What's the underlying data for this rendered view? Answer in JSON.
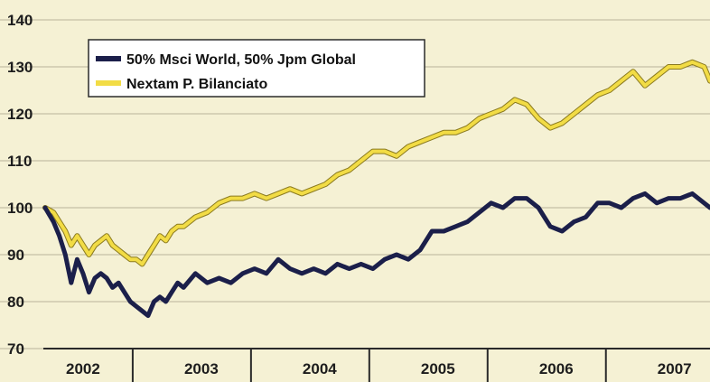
{
  "chart_data": {
    "type": "line",
    "title": "",
    "xlabel": "",
    "ylabel": "",
    "ylim": [
      70,
      140
    ],
    "xlim": [
      2001.93,
      2007.55
    ],
    "y_ticks": [
      70,
      80,
      90,
      100,
      110,
      120,
      130,
      140
    ],
    "x_tick_labels": [
      {
        "label": "2002",
        "x": 2002.25
      },
      {
        "label": "2003",
        "x": 2003.25
      },
      {
        "label": "2004",
        "x": 2004.25
      },
      {
        "label": "2005",
        "x": 2005.25
      },
      {
        "label": "2006",
        "x": 2006.25
      },
      {
        "label": "2007",
        "x": 2007.25
      }
    ],
    "x_separators": [
      2002.67,
      2003.67,
      2004.67,
      2005.67,
      2006.67
    ],
    "grid": true,
    "legend_position": "top-left",
    "series": [
      {
        "name": "50% Msci World, 50% Jpm Global",
        "color": "#1b1f4a",
        "x": [
          2001.93,
          2002.0,
          2002.05,
          2002.1,
          2002.15,
          2002.2,
          2002.25,
          2002.3,
          2002.35,
          2002.4,
          2002.45,
          2002.5,
          2002.55,
          2002.6,
          2002.65,
          2002.7,
          2002.75,
          2002.8,
          2002.85,
          2002.9,
          2002.95,
          2003.0,
          2003.05,
          2003.1,
          2003.2,
          2003.3,
          2003.4,
          2003.5,
          2003.6,
          2003.7,
          2003.8,
          2003.9,
          2004.0,
          2004.1,
          2004.2,
          2004.3,
          2004.4,
          2004.5,
          2004.6,
          2004.7,
          2004.8,
          2004.9,
          2005.0,
          2005.1,
          2005.2,
          2005.3,
          2005.4,
          2005.5,
          2005.6,
          2005.7,
          2005.8,
          2005.9,
          2006.0,
          2006.1,
          2006.2,
          2006.3,
          2006.4,
          2006.5,
          2006.6,
          2006.7,
          2006.8,
          2006.9,
          2007.0,
          2007.1,
          2007.2,
          2007.3,
          2007.4,
          2007.5,
          2007.55
        ],
        "values": [
          100,
          97,
          94,
          90,
          84,
          89,
          86,
          82,
          85,
          86,
          85,
          83,
          84,
          82,
          80,
          79,
          78,
          77,
          80,
          81,
          80,
          82,
          84,
          83,
          86,
          84,
          85,
          84,
          86,
          87,
          86,
          89,
          87,
          86,
          87,
          86,
          88,
          87,
          88,
          87,
          89,
          90,
          89,
          91,
          95,
          95,
          96,
          97,
          99,
          101,
          100,
          102,
          102,
          100,
          96,
          95,
          97,
          98,
          101,
          101,
          100,
          102,
          103,
          101,
          102,
          102,
          103,
          101,
          100
        ]
      },
      {
        "name": "Nextam P. Bilanciato",
        "color": "#f2dc45",
        "x": [
          2001.93,
          2002.0,
          2002.05,
          2002.1,
          2002.15,
          2002.2,
          2002.25,
          2002.3,
          2002.35,
          2002.4,
          2002.45,
          2002.5,
          2002.55,
          2002.6,
          2002.65,
          2002.7,
          2002.75,
          2002.8,
          2002.85,
          2002.9,
          2002.95,
          2003.0,
          2003.05,
          2003.1,
          2003.2,
          2003.3,
          2003.4,
          2003.5,
          2003.6,
          2003.7,
          2003.8,
          2003.9,
          2004.0,
          2004.1,
          2004.2,
          2004.3,
          2004.4,
          2004.5,
          2004.6,
          2004.7,
          2004.8,
          2004.9,
          2005.0,
          2005.1,
          2005.2,
          2005.3,
          2005.4,
          2005.5,
          2005.6,
          2005.7,
          2005.8,
          2005.9,
          2006.0,
          2006.1,
          2006.2,
          2006.3,
          2006.4,
          2006.5,
          2006.6,
          2006.7,
          2006.8,
          2006.9,
          2007.0,
          2007.1,
          2007.2,
          2007.3,
          2007.4,
          2007.5,
          2007.55
        ],
        "values": [
          100,
          99,
          97,
          95,
          92,
          94,
          92,
          90,
          92,
          93,
          94,
          92,
          91,
          90,
          89,
          89,
          88,
          90,
          92,
          94,
          93,
          95,
          96,
          96,
          98,
          99,
          101,
          102,
          102,
          103,
          102,
          103,
          104,
          103,
          104,
          105,
          107,
          108,
          110,
          112,
          112,
          111,
          113,
          114,
          115,
          116,
          116,
          117,
          119,
          120,
          121,
          123,
          122,
          119,
          117,
          118,
          120,
          122,
          124,
          125,
          127,
          129,
          126,
          128,
          130,
          130,
          131,
          130,
          127
        ]
      }
    ]
  }
}
